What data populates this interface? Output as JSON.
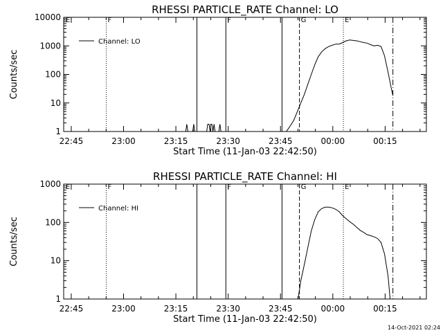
{
  "chart_data": [
    {
      "type": "line",
      "title": "RHESSI PARTICLE_RATE Channel: LO",
      "xlabel": "Start Time (11-Jan-03 22:42:50)",
      "ylabel": "Counts/sec",
      "y_scale": "log",
      "ylim": [
        1,
        10000
      ],
      "xlim": [
        0,
        104
      ],
      "x_ticks": [
        {
          "x": 2.17,
          "label": "22:45"
        },
        {
          "x": 17.17,
          "label": "23:00"
        },
        {
          "x": 32.17,
          "label": "23:15"
        },
        {
          "x": 47.17,
          "label": "23:30"
        },
        {
          "x": 62.17,
          "label": "23:45"
        },
        {
          "x": 77.17,
          "label": "00:00"
        },
        {
          "x": 92.17,
          "label": "00:15"
        }
      ],
      "y_ticks": [
        {
          "y": 1,
          "label": "1"
        },
        {
          "y": 10,
          "label": "10"
        },
        {
          "y": 100,
          "label": "100"
        },
        {
          "y": 1000,
          "label": "1000"
        },
        {
          "y": 10000,
          "label": "10000"
        }
      ],
      "legend": {
        "entry": "Channel: LO",
        "placement": "top-left"
      },
      "markers": [
        {
          "x": 0.2,
          "style": "none",
          "label": "E"
        },
        {
          "x": 12.2,
          "style": "dotted",
          "label": "F"
        },
        {
          "x": 38.2,
          "style": "solid",
          "label": ""
        },
        {
          "x": 46.5,
          "style": "solid",
          "label": "F"
        },
        {
          "x": 62.6,
          "style": "solid",
          "label": ""
        },
        {
          "x": 67.6,
          "style": "dashed",
          "label": "G"
        },
        {
          "x": 80.2,
          "style": "dotted",
          "label": "E"
        },
        {
          "x": 94.4,
          "style": "dashdot",
          "label": ""
        }
      ],
      "series": [
        {
          "name": "Channel: LO",
          "points": [
            [
              35.0,
              1
            ],
            [
              35.3,
              1.8
            ],
            [
              35.6,
              1
            ],
            [
              37.0,
              1
            ],
            [
              37.3,
              1.8
            ],
            [
              37.6,
              1
            ],
            [
              41.0,
              1
            ],
            [
              41.3,
              1.8
            ],
            [
              41.7,
              1.8
            ],
            [
              42.0,
              1
            ],
            [
              42.2,
              1.8
            ],
            [
              42.5,
              1.8
            ],
            [
              42.8,
              1
            ],
            [
              43.1,
              1.8
            ],
            [
              43.4,
              1
            ],
            [
              44.5,
              1
            ],
            [
              44.8,
              1.8
            ],
            [
              45.1,
              1
            ],
            [
              63.8,
              1
            ],
            [
              64.3,
              1.2
            ],
            [
              65.0,
              1.6
            ],
            [
              66.0,
              2.5
            ],
            [
              67.0,
              5
            ],
            [
              68.0,
              10
            ],
            [
              69.0,
              20
            ],
            [
              70.0,
              45
            ],
            [
              71.0,
              100
            ],
            [
              72.0,
              220
            ],
            [
              73.0,
              420
            ],
            [
              74.0,
              620
            ],
            [
              75.0,
              800
            ],
            [
              76.0,
              950
            ],
            [
              77.0,
              1050
            ],
            [
              78.0,
              1150
            ],
            [
              79.0,
              1150
            ],
            [
              80.0,
              1300
            ],
            [
              81.0,
              1500
            ],
            [
              82.0,
              1600
            ],
            [
              83.0,
              1550
            ],
            [
              84.0,
              1500
            ],
            [
              85.0,
              1400
            ],
            [
              86.0,
              1300
            ],
            [
              87.0,
              1250
            ],
            [
              88.0,
              1100
            ],
            [
              89.0,
              1000
            ],
            [
              90.0,
              1050
            ],
            [
              91.0,
              950
            ],
            [
              92.0,
              450
            ],
            [
              93.0,
              120
            ],
            [
              94.0,
              30
            ],
            [
              94.4,
              18
            ]
          ]
        }
      ]
    },
    {
      "type": "line",
      "title": "RHESSI PARTICLE_RATE Channel: HI",
      "xlabel": "Start Time (11-Jan-03 22:42:50)",
      "ylabel": "Counts/sec",
      "y_scale": "log",
      "ylim": [
        1,
        1000
      ],
      "xlim": [
        0,
        104
      ],
      "x_ticks": [
        {
          "x": 2.17,
          "label": "22:45"
        },
        {
          "x": 17.17,
          "label": "23:00"
        },
        {
          "x": 32.17,
          "label": "23:15"
        },
        {
          "x": 47.17,
          "label": "23:30"
        },
        {
          "x": 62.17,
          "label": "23:45"
        },
        {
          "x": 77.17,
          "label": "00:00"
        },
        {
          "x": 92.17,
          "label": "00:15"
        }
      ],
      "y_ticks": [
        {
          "y": 1,
          "label": "1"
        },
        {
          "y": 10,
          "label": "10"
        },
        {
          "y": 100,
          "label": "100"
        },
        {
          "y": 1000,
          "label": "1000"
        }
      ],
      "legend": {
        "entry": "Channel: HI",
        "placement": "top-left"
      },
      "markers": [
        {
          "x": 0.2,
          "style": "none",
          "label": "E"
        },
        {
          "x": 12.2,
          "style": "dotted",
          "label": "F"
        },
        {
          "x": 38.2,
          "style": "solid",
          "label": ""
        },
        {
          "x": 46.5,
          "style": "solid",
          "label": "F"
        },
        {
          "x": 62.6,
          "style": "solid",
          "label": ""
        },
        {
          "x": 67.6,
          "style": "dashed",
          "label": "G"
        },
        {
          "x": 80.2,
          "style": "dotted",
          "label": "E"
        },
        {
          "x": 94.4,
          "style": "dashdot",
          "label": ""
        }
      ],
      "series": [
        {
          "name": "Channel: HI",
          "points": [
            [
              67.2,
              1
            ],
            [
              68.0,
              3
            ],
            [
              69.0,
              8
            ],
            [
              70.0,
              22
            ],
            [
              71.0,
              60
            ],
            [
              72.0,
              120
            ],
            [
              73.0,
              190
            ],
            [
              74.0,
              230
            ],
            [
              75.0,
              250
            ],
            [
              76.0,
              250
            ],
            [
              77.0,
              240
            ],
            [
              78.0,
              220
            ],
            [
              79.0,
              190
            ],
            [
              80.0,
              150
            ],
            [
              81.0,
              125
            ],
            [
              82.0,
              105
            ],
            [
              83.0,
              90
            ],
            [
              84.0,
              75
            ],
            [
              85.0,
              62
            ],
            [
              86.0,
              55
            ],
            [
              87.0,
              48
            ],
            [
              88.0,
              45
            ],
            [
              89.0,
              42
            ],
            [
              90.0,
              38
            ],
            [
              91.0,
              30
            ],
            [
              92.0,
              15
            ],
            [
              93.0,
              4
            ],
            [
              93.6,
              1
            ]
          ]
        }
      ]
    }
  ],
  "footer": {
    "timestamp": "14-Oct-2021 02:24"
  }
}
